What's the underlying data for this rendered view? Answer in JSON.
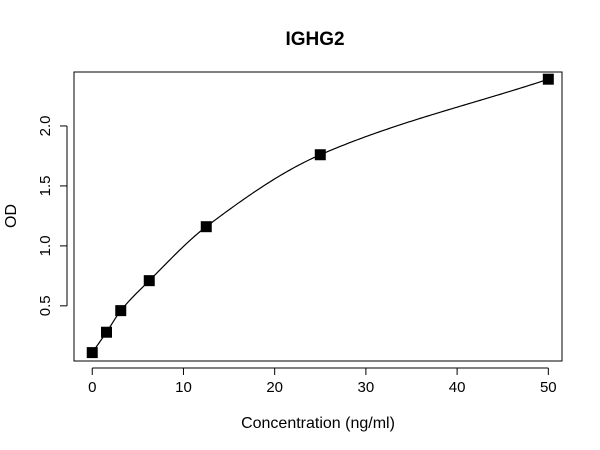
{
  "chart_data": {
    "type": "scatter",
    "title": "IGHG2",
    "xlabel": "Concentration (ng/ml)",
    "ylabel": "OD",
    "xlim": [
      -2,
      51.5
    ],
    "ylim": [
      0.04,
      2.45
    ],
    "xticks": [
      0,
      10,
      20,
      30,
      40,
      50
    ],
    "yticks": [
      0.5,
      1.0,
      1.5,
      2.0
    ],
    "xtick_labels": [
      "0",
      "10",
      "20",
      "30",
      "40",
      "50"
    ],
    "ytick_labels": [
      "0.5",
      "1.0",
      "1.5",
      "2.0"
    ],
    "grid": false,
    "series": [
      {
        "marker": "square",
        "color": "#000000",
        "points": [
          {
            "x": 0,
            "y": 0.11
          },
          {
            "x": 1.5625,
            "y": 0.28
          },
          {
            "x": 3.125,
            "y": 0.46
          },
          {
            "x": 6.25,
            "y": 0.71
          },
          {
            "x": 12.5,
            "y": 1.16
          },
          {
            "x": 25,
            "y": 1.76
          },
          {
            "x": 50,
            "y": 2.39
          }
        ]
      }
    ],
    "fit_curve": {
      "color": "#000000"
    }
  }
}
